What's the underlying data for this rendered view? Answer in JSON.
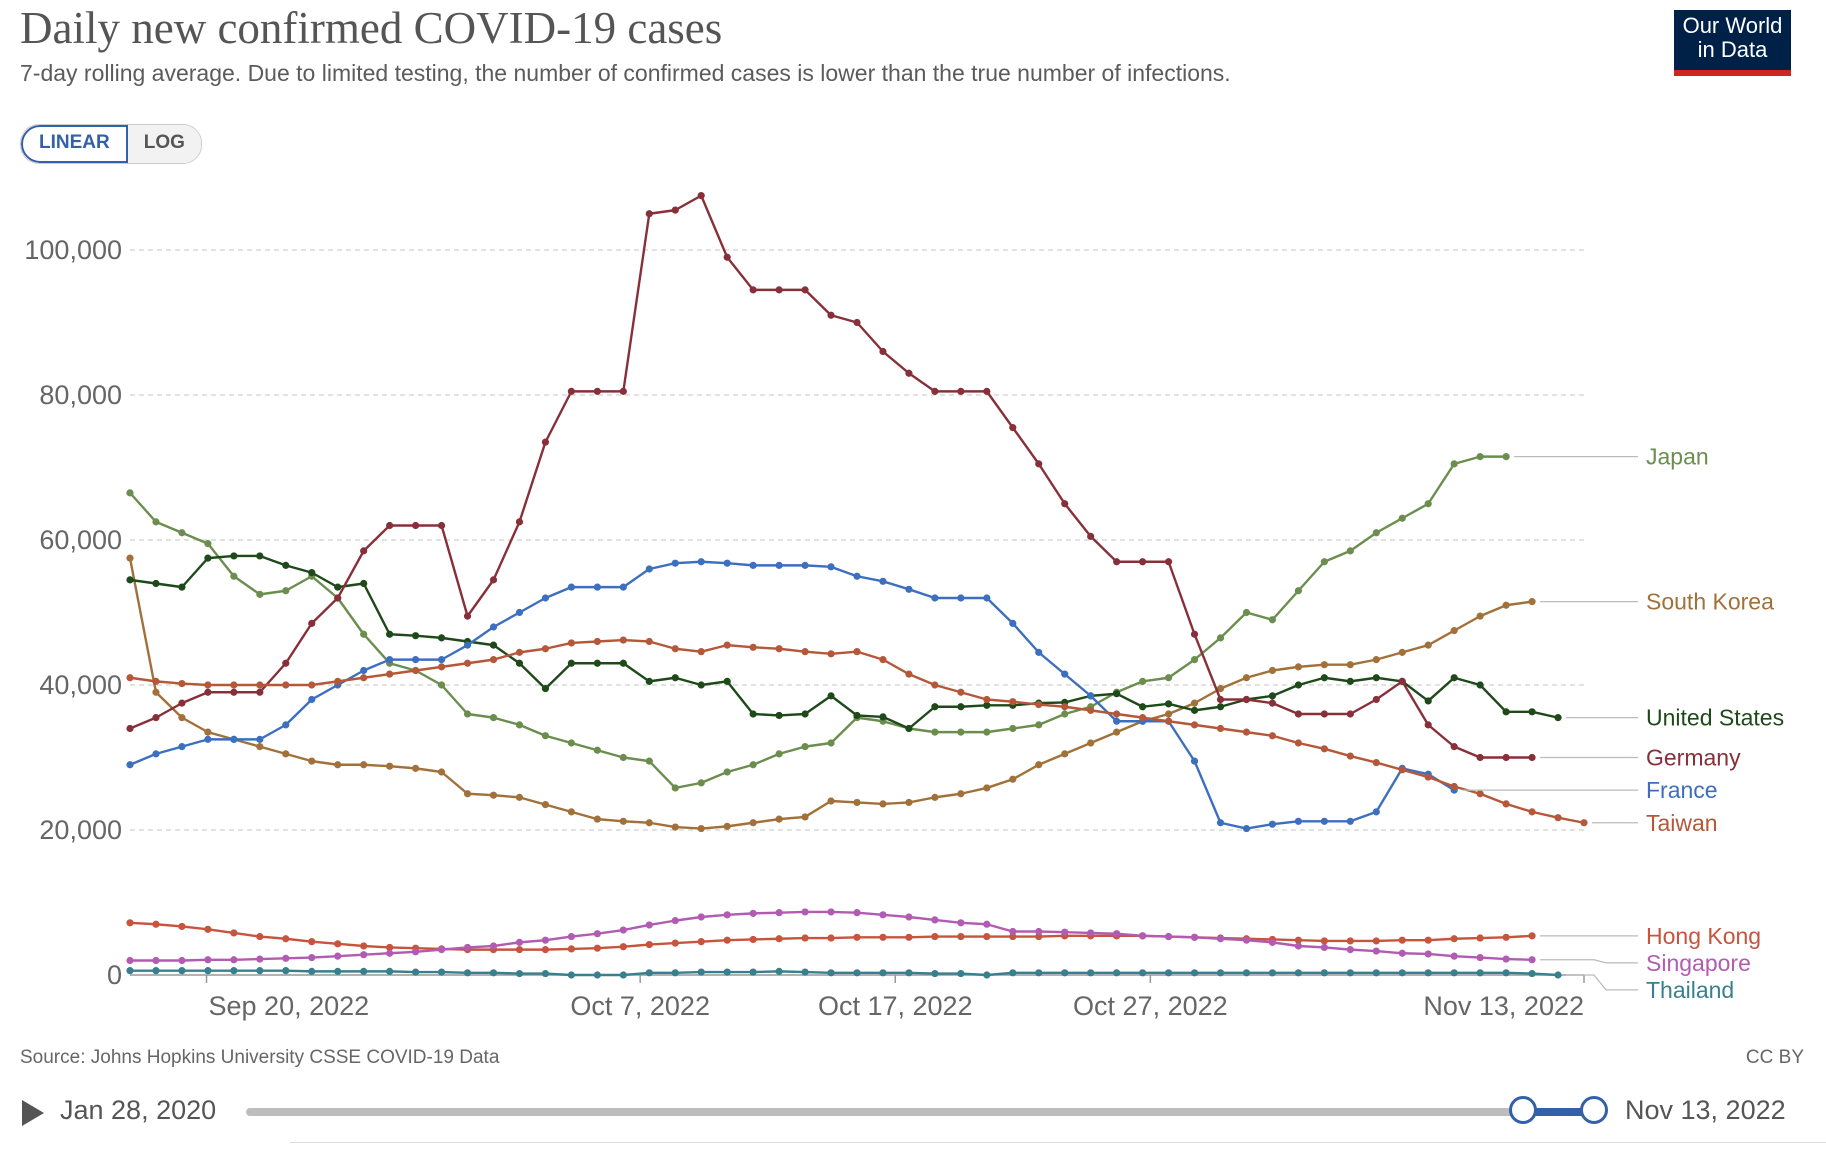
{
  "title": "Daily new confirmed COVID-19 cases",
  "subtitle": "7-day rolling average. Due to limited testing, the number of confirmed cases is lower than the true number of infections.",
  "logo": {
    "line1": "Our World",
    "line2": "in Data"
  },
  "scale_toggle": {
    "linear": "LINEAR",
    "log": "LOG",
    "selected": "LINEAR"
  },
  "source": "Source: Johns Hopkins University CSSE COVID-19 Data",
  "license": "CC BY",
  "timeline": {
    "start": "Jan 28, 2020",
    "end": "Nov 13, 2022"
  },
  "chart_data": {
    "type": "line",
    "x_start": "2022-09-17",
    "x_end": "2022-11-13",
    "x_tick_labels": [
      "Sep 20, 2022",
      "Oct 7, 2022",
      "Oct 17, 2022",
      "Oct 27, 2022",
      "Nov 13, 2022"
    ],
    "y_ticks": [
      0,
      20000,
      40000,
      60000,
      80000,
      100000
    ],
    "y_tick_labels": [
      "0",
      "20,000",
      "40,000",
      "60,000",
      "80,000",
      "100,000"
    ],
    "ylim": [
      0,
      108000
    ],
    "grid": true,
    "legend": "right",
    "series": [
      {
        "name": "Japan",
        "color": "#6b8e4e",
        "values": [
          66500,
          62500,
          61000,
          59500,
          55000,
          52500,
          53000,
          55000,
          52000,
          47000,
          43000,
          42000,
          40000,
          36000,
          35500,
          34500,
          33000,
          32000,
          31000,
          30000,
          29500,
          25800,
          26500,
          28000,
          29000,
          30500,
          31500,
          32000,
          35500,
          35000,
          34000,
          33500,
          33500,
          33500,
          34000,
          34500,
          36000,
          37000,
          39000,
          40500,
          41000,
          43500,
          46500,
          50000,
          49000,
          53000,
          57000,
          58500,
          61000,
          63000,
          65000,
          70500,
          71500,
          71500
        ]
      },
      {
        "name": "South Korea",
        "color": "#a2713a",
        "values": [
          57500,
          39000,
          35500,
          33500,
          32500,
          31500,
          30500,
          29500,
          29000,
          29000,
          28800,
          28500,
          28000,
          25000,
          24800,
          24500,
          23500,
          22500,
          21500,
          21200,
          21000,
          20400,
          20200,
          20500,
          21000,
          21500,
          21800,
          24000,
          23800,
          23600,
          23800,
          24500,
          25000,
          25800,
          27000,
          29000,
          30500,
          32000,
          33500,
          35000,
          36000,
          37500,
          39500,
          41000,
          42000,
          42500,
          42800,
          42800,
          43500,
          44500,
          45500,
          47500,
          49500,
          51000,
          51500
        ]
      },
      {
        "name": "United States",
        "color": "#1e4a1a",
        "values": [
          54500,
          54000,
          53500,
          57500,
          57800,
          57800,
          56500,
          55500,
          53500,
          54000,
          47000,
          46800,
          46500,
          46000,
          45500,
          43000,
          39500,
          43000,
          43000,
          43000,
          40500,
          41000,
          40000,
          40500,
          36000,
          35800,
          36000,
          38500,
          35800,
          35600,
          34000,
          37000,
          37000,
          37200,
          37200,
          37500,
          37600,
          38500,
          38800,
          37000,
          37400,
          36500,
          37000,
          38000,
          38500,
          40000,
          41000,
          40500,
          41000,
          40500,
          37800,
          41000,
          40000,
          36300,
          36300,
          35500
        ]
      },
      {
        "name": "Germany",
        "color": "#883039",
        "values": [
          34000,
          35500,
          37500,
          39000,
          39000,
          39000,
          43000,
          48500,
          52000,
          58500,
          62000,
          62000,
          62000,
          49500,
          54500,
          62500,
          73500,
          80500,
          80500,
          80500,
          105000,
          105500,
          107500,
          99000,
          94500,
          94500,
          94500,
          91000,
          90000,
          86000,
          83000,
          80500,
          80500,
          80500,
          75500,
          70500,
          65000,
          60500,
          57000,
          57000,
          57000,
          47000,
          38000,
          38000,
          37500,
          36000,
          36000,
          36000,
          38000,
          40500,
          34500,
          31500,
          30000,
          30000,
          30000
        ]
      },
      {
        "name": "France",
        "color": "#3d6fbf",
        "values": [
          29000,
          30500,
          31500,
          32500,
          32500,
          32500,
          34500,
          38000,
          40000,
          42000,
          43500,
          43500,
          43500,
          45500,
          48000,
          50000,
          52000,
          53500,
          53500,
          53500,
          56000,
          56800,
          57000,
          56800,
          56500,
          56500,
          56500,
          56300,
          55000,
          54300,
          53200,
          52000,
          52000,
          52000,
          48500,
          44500,
          41500,
          38500,
          35000,
          35000,
          35000,
          29500,
          21000,
          20200,
          20800,
          21200,
          21200,
          21200,
          22500,
          28500,
          27700,
          25500
        ]
      },
      {
        "name": "Taiwan",
        "color": "#b5583a",
        "values": [
          41000,
          40500,
          40200,
          40000,
          40000,
          40000,
          40000,
          40000,
          40500,
          41000,
          41500,
          42000,
          42500,
          43000,
          43500,
          44500,
          45000,
          45800,
          46000,
          46200,
          46000,
          45000,
          44600,
          45500,
          45200,
          45000,
          44600,
          44300,
          44600,
          43500,
          41500,
          40000,
          39000,
          38000,
          37700,
          37300,
          37000,
          36500,
          36000,
          35500,
          35000,
          34500,
          34000,
          33500,
          33000,
          32000,
          31200,
          30200,
          29300,
          28300,
          27300,
          26000,
          25000,
          23600,
          22500,
          21700,
          21000
        ]
      },
      {
        "name": "Hong Kong",
        "color": "#c7543d",
        "values": [
          7200,
          7000,
          6700,
          6300,
          5800,
          5300,
          5000,
          4600,
          4300,
          4000,
          3800,
          3700,
          3600,
          3500,
          3500,
          3500,
          3500,
          3600,
          3700,
          3900,
          4200,
          4400,
          4600,
          4800,
          4900,
          5000,
          5100,
          5100,
          5200,
          5200,
          5200,
          5300,
          5300,
          5300,
          5300,
          5300,
          5400,
          5400,
          5400,
          5400,
          5300,
          5200,
          5100,
          5000,
          4900,
          4800,
          4700,
          4700,
          4700,
          4800,
          4800,
          5000,
          5100,
          5200,
          5400
        ]
      },
      {
        "name": "Singapore",
        "color": "#b15cb2",
        "values": [
          2000,
          2000,
          2000,
          2100,
          2100,
          2200,
          2300,
          2400,
          2600,
          2800,
          3000,
          3200,
          3500,
          3800,
          4000,
          4500,
          4800,
          5300,
          5700,
          6200,
          6900,
          7500,
          8000,
          8300,
          8500,
          8600,
          8700,
          8700,
          8600,
          8300,
          8000,
          7600,
          7200,
          7000,
          6000,
          6000,
          5900,
          5800,
          5700,
          5400,
          5300,
          5200,
          5000,
          4800,
          4500,
          4000,
          3800,
          3500,
          3300,
          3000,
          2900,
          2600,
          2400,
          2200,
          2100
        ]
      },
      {
        "name": "Thailand",
        "color": "#38808e",
        "values": [
          600,
          600,
          600,
          600,
          600,
          600,
          600,
          500,
          500,
          500,
          500,
          400,
          400,
          300,
          300,
          200,
          200,
          0,
          -100,
          0,
          300,
          300,
          400,
          400,
          400,
          500,
          400,
          300,
          300,
          300,
          300,
          200,
          200,
          0,
          300,
          300,
          300,
          300,
          300,
          300,
          300,
          300,
          300,
          300,
          300,
          300,
          300,
          300,
          300,
          300,
          300,
          300,
          300,
          300,
          200,
          0
        ]
      }
    ]
  }
}
